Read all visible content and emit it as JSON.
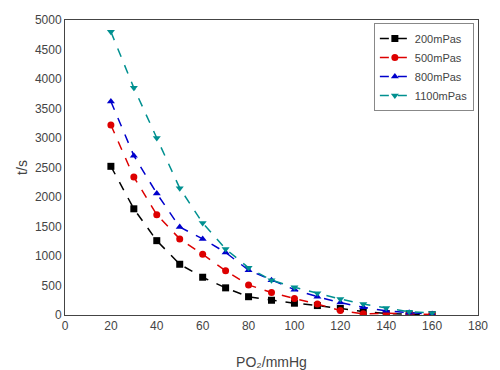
{
  "chart_data": {
    "type": "line",
    "xlabel": "PO₂/mmHg",
    "ylabel": "t/s",
    "x": [
      20,
      30,
      40,
      50,
      60,
      70,
      80,
      90,
      100,
      110,
      120,
      130,
      140,
      150,
      160
    ],
    "series": [
      {
        "name": "200mPas",
        "color": "#000000",
        "marker": "square",
        "line_style": "dashed",
        "values": [
          2520,
          1800,
          1260,
          860,
          640,
          460,
          310,
          250,
          200,
          160,
          110,
          60,
          25,
          10,
          5
        ]
      },
      {
        "name": "500mPas",
        "color": "#dd0000",
        "marker": "circle",
        "line_style": "dashed",
        "values": [
          3220,
          2340,
          1700,
          1290,
          1030,
          750,
          510,
          380,
          280,
          185,
          75,
          20,
          30,
          15,
          10
        ]
      },
      {
        "name": "800mPas",
        "color": "#0000cc",
        "marker": "triangle-up",
        "line_style": "dashed",
        "values": [
          3620,
          2700,
          2060,
          1490,
          1290,
          1060,
          760,
          590,
          430,
          310,
          210,
          130,
          70,
          40,
          15
        ]
      },
      {
        "name": "1100mPas",
        "color": "#009090",
        "marker": "triangle-down",
        "line_style": "dashed",
        "values": [
          4800,
          3850,
          3000,
          2150,
          1560,
          1120,
          800,
          590,
          470,
          370,
          270,
          185,
          120,
          55,
          35
        ]
      }
    ],
    "xlim": [
      0,
      180
    ],
    "ylim": [
      0,
      5000
    ],
    "xticks": [
      0,
      20,
      40,
      60,
      80,
      100,
      120,
      140,
      160,
      180
    ],
    "yticks": [
      0,
      500,
      1000,
      1500,
      2000,
      2500,
      3000,
      3500,
      4000,
      4500,
      5000
    ],
    "grid": false,
    "legend": "upper right"
  }
}
